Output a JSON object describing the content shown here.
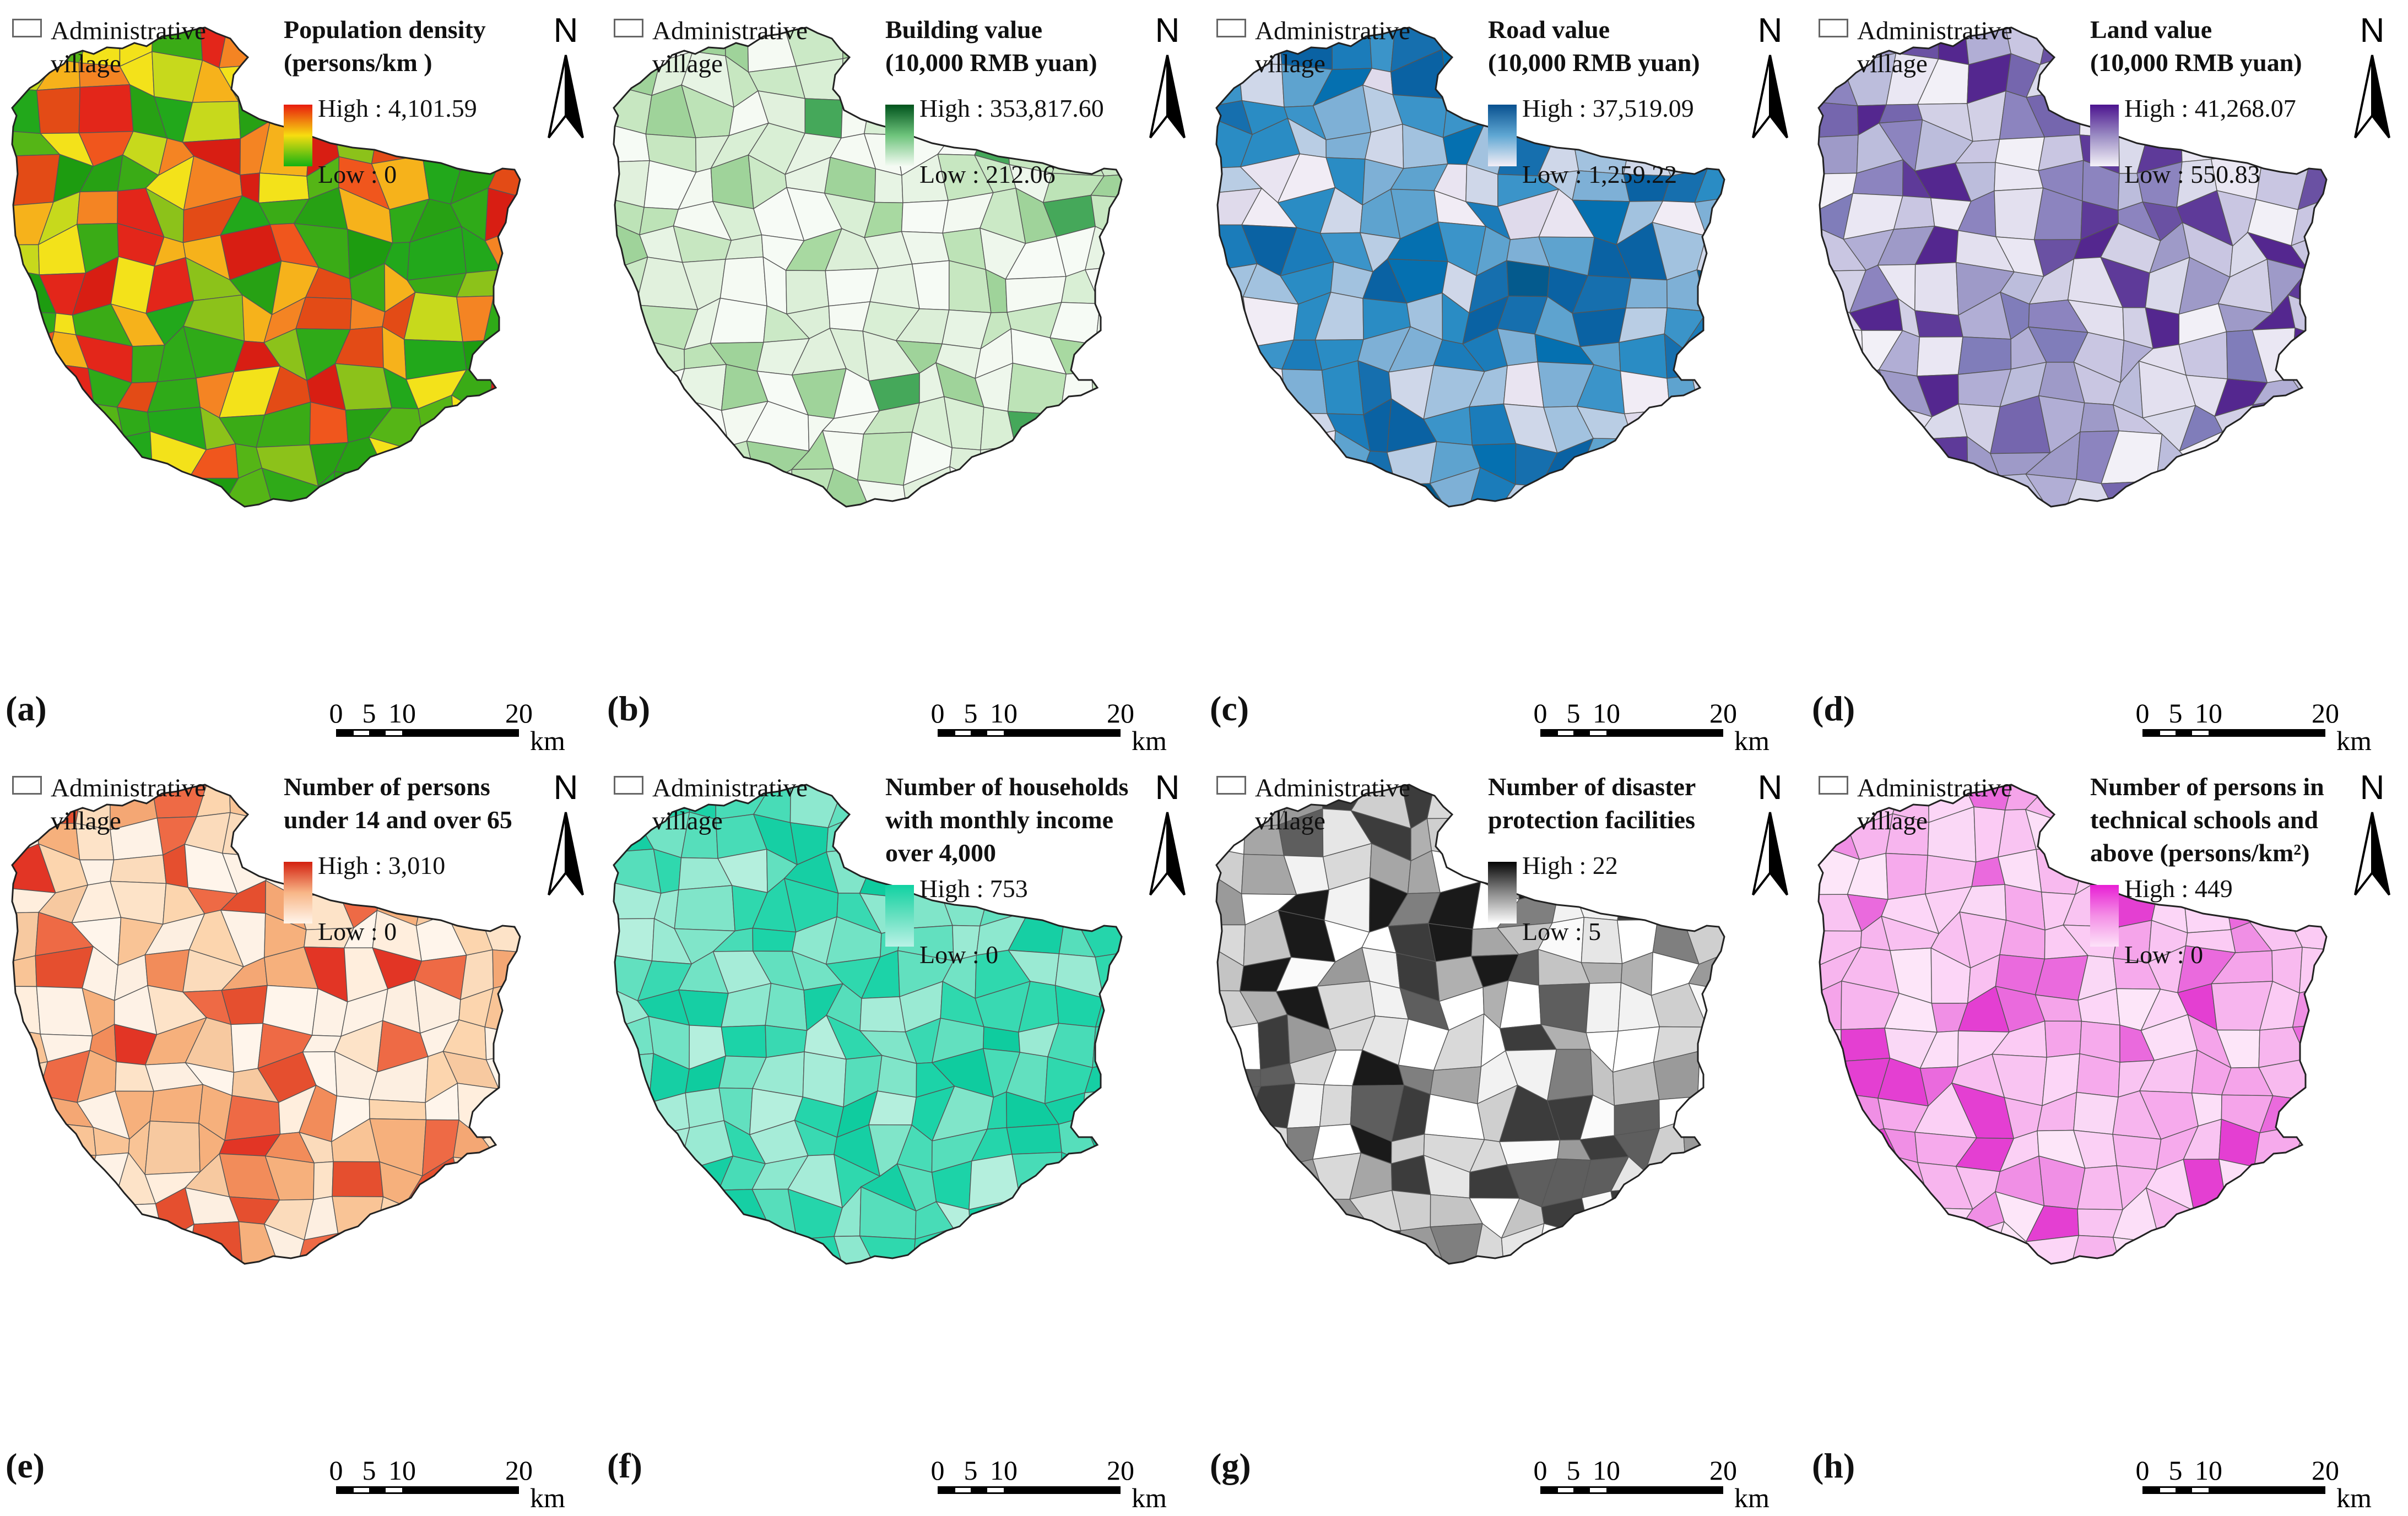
{
  "common": {
    "village_legend": [
      "Administrative",
      "village"
    ],
    "north_label": "N",
    "scale_ticks": [
      "0",
      "5",
      "10",
      "20"
    ],
    "scale_unit": "km"
  },
  "panels": [
    {
      "id": "a",
      "label": "(a)",
      "title": [
        "Population density",
        "(persons/km )"
      ],
      "high": "High : 4,101.59",
      "low": "Low : 0",
      "ramp": [
        "#e81b0e",
        "#f7dd10",
        "#14b211"
      ],
      "palette": [
        "#22a81b",
        "#2faa18",
        "#55b516",
        "#8cc21a",
        "#c7d91c",
        "#f3e21a",
        "#f6b21b",
        "#f48423",
        "#f0561d",
        "#e3261a",
        "#d81e13",
        "#27a114",
        "#3aab16",
        "#e34b16",
        "#1d9c10"
      ]
    },
    {
      "id": "b",
      "label": "(b)",
      "title": [
        "Building value",
        "(10,000 RMB yuan)"
      ],
      "high": "High : 353,817.60",
      "low": "Low : 212.06",
      "ramp": [
        "#00531c",
        "#6ec47c",
        "#f5fbf4"
      ],
      "palette": [
        "#f7fbf6",
        "#f3f9f1",
        "#e7f4e4",
        "#d9efd5",
        "#cbe9c6",
        "#bde3b7",
        "#a8d9a1",
        "#f5faf3",
        "#eef7ec",
        "#e1f1dd",
        "#9fd39a",
        "#45a85a",
        "#f6fbf5",
        "#dcefd8",
        "#c7e7c1"
      ]
    },
    {
      "id": "c",
      "label": "(c)",
      "title": [
        "Road value",
        "(10,000 RMB yuan)"
      ],
      "high": "High : 37,519.09",
      "low": "Low : 1,259.22",
      "ramp": [
        "#08508f",
        "#5fa7d3",
        "#f4eef6"
      ],
      "palette": [
        "#0a62a3",
        "#1b7cba",
        "#3b94c9",
        "#7eb0d6",
        "#b9cde4",
        "#dfdaeb",
        "#f1ecf5",
        "#0570b0",
        "#2a8cc4",
        "#a2c2df",
        "#e9e4f1",
        "#045a8d",
        "#5ea3cf",
        "#cfd7e9",
        "#166fae"
      ]
    },
    {
      "id": "d",
      "label": "(d)",
      "title": [
        "Land value",
        "(10,000 RMB yuan)"
      ],
      "high": "High : 41,268.07",
      "low": "Low : 550.83",
      "ramp": [
        "#4c148f",
        "#9a8bc3",
        "#f4f2f8"
      ],
      "palette": [
        "#f2f0f7",
        "#dadaeb",
        "#bcbddc",
        "#9e9ac8",
        "#807dba",
        "#6a51a3",
        "#54278f",
        "#eae7f3",
        "#c9c6e2",
        "#8c84bf",
        "#5e3a99",
        "#e3e0ef",
        "#b1aed5",
        "#7566ae",
        "#d2d0e6"
      ]
    },
    {
      "id": "e",
      "label": "(e)",
      "title": [
        "Number of persons",
        "under 14 and over 65"
      ],
      "high": "High : 3,010",
      "low": "Low : 0",
      "ramp": [
        "#d3200f",
        "#f8b687",
        "#fff5eb"
      ],
      "palette": [
        "#fff5eb",
        "#fdefe1",
        "#fde3c8",
        "#fcd5ae",
        "#f9c496",
        "#f6b07c",
        "#f28c5a",
        "#ee6a45",
        "#e54f2f",
        "#fef2e6",
        "#fbdbbb",
        "#f7c9a0",
        "#f4a774",
        "#e23525",
        "#ffeedd"
      ]
    },
    {
      "id": "f",
      "label": "(f)",
      "title": [
        "Number of households",
        "with monthly income",
        "over 4,000"
      ],
      "high": "High : 753",
      "low": "Low : 0",
      "ramp": [
        "#10d2a2",
        "#66e0c0",
        "#b9f2e6"
      ],
      "palette": [
        "#1cd3a8",
        "#2fd8ae",
        "#48dcb7",
        "#62e0bf",
        "#80e5c9",
        "#9aead3",
        "#b4efdd",
        "#16cfa4",
        "#39d9b2",
        "#72e3c5",
        "#a6ecd8",
        "#0fcc9f",
        "#56debb",
        "#8de8cf",
        "#25d5ab"
      ]
    },
    {
      "id": "g",
      "label": "(g)",
      "title": [
        "Number of disaster",
        "protection facilities"
      ],
      "high": "High : 22",
      "low": "Low : 5",
      "ramp": [
        "#050505",
        "#8a8a8a",
        "#ffffff"
      ],
      "palette": [
        "#ffffff",
        "#f2f2f2",
        "#d9d9d9",
        "#c4c4c4",
        "#b0b0b0",
        "#9a9a9a",
        "#7f7f7f",
        "#5e5e5e",
        "#3c3c3c",
        "#1a1a1a",
        "#fafafa",
        "#e6e6e6",
        "#cfcfcf",
        "#a6a6a6",
        "#ffffff"
      ]
    },
    {
      "id": "h",
      "label": "(h)",
      "title": [
        "Number of persons in",
        "technical schools and",
        "above (persons/km²)"
      ],
      "high": "High : 449",
      "low": "Low : 0",
      "ramp": [
        "#e81fd4",
        "#f48fe6",
        "#fde2f8"
      ],
      "palette": [
        "#fbd0f5",
        "#f9c4f2",
        "#f7b5ee",
        "#f5a4ea",
        "#fad8f6",
        "#fcdff8",
        "#f08fe5",
        "#ea6add",
        "#e43fd2",
        "#fbcbf4",
        "#f8baef",
        "#fde6f9",
        "#f6aaec",
        "#f9c0f1",
        "#fcd6f7"
      ]
    }
  ]
}
